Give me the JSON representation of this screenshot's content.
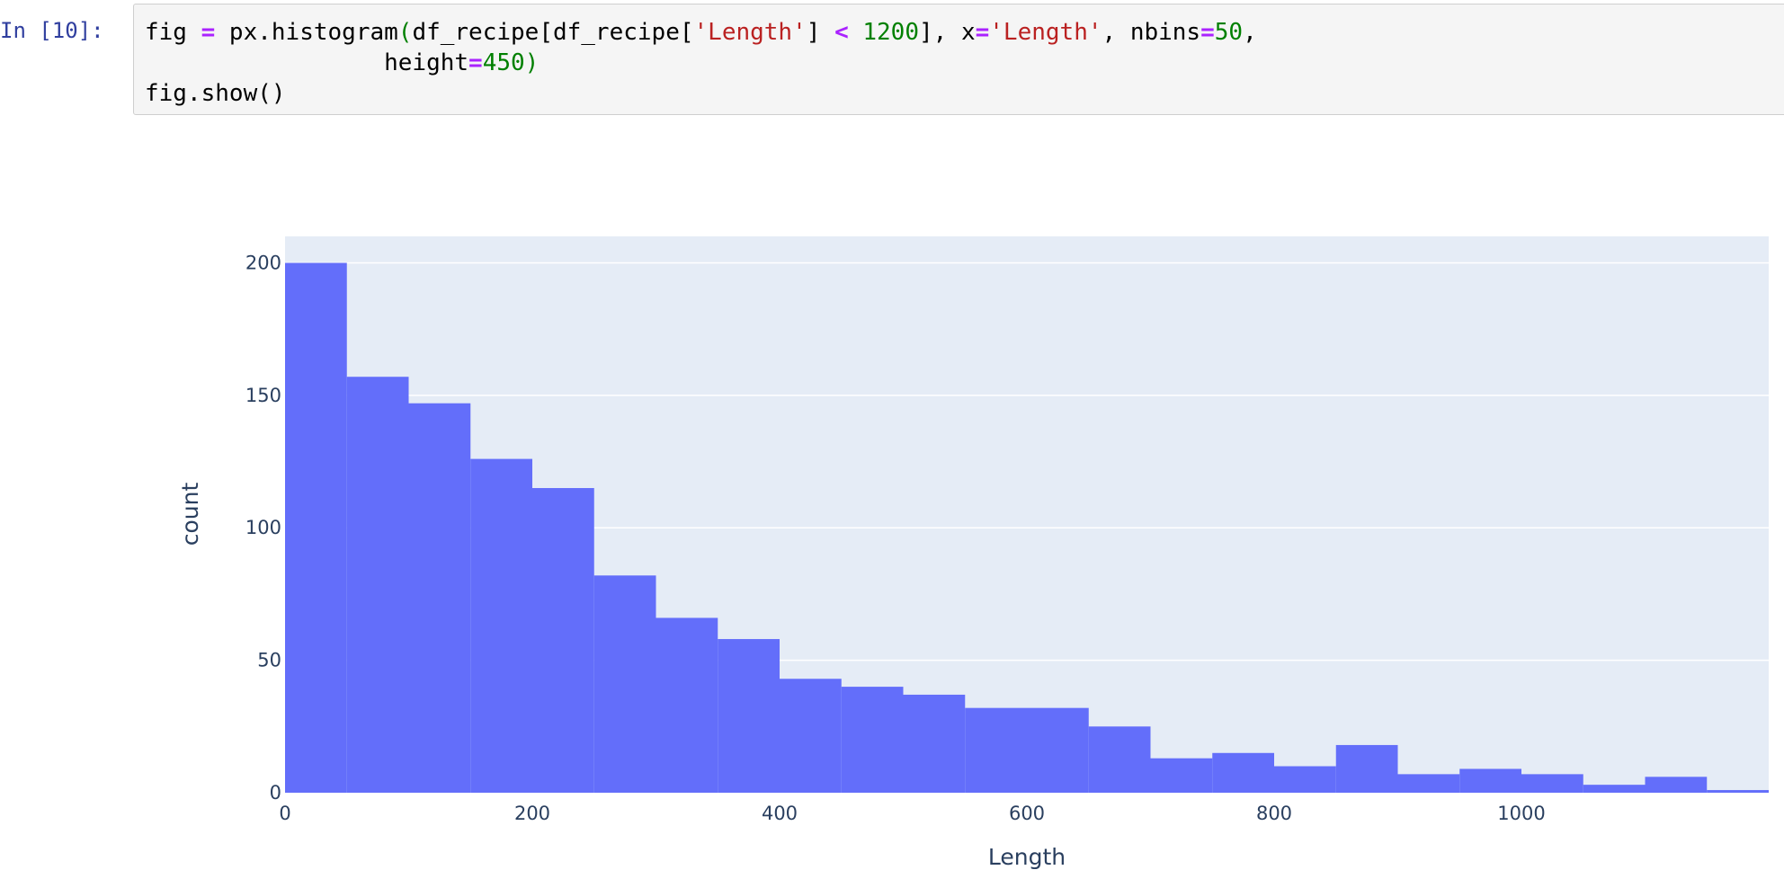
{
  "cell": {
    "prompt": "In [10]:",
    "code_lines": [
      [
        {
          "t": "fig ",
          "c": ""
        },
        {
          "t": "=",
          "c": "op"
        },
        {
          "t": " px.histogram",
          "c": ""
        },
        {
          "t": "(",
          "c": "num"
        },
        {
          "t": "df_recipe[df_recipe[",
          "c": ""
        },
        {
          "t": "'Length'",
          "c": "str"
        },
        {
          "t": "] ",
          "c": ""
        },
        {
          "t": "<",
          "c": "op"
        },
        {
          "t": " ",
          "c": ""
        },
        {
          "t": "1200",
          "c": "num"
        },
        {
          "t": "], x",
          "c": ""
        },
        {
          "t": "=",
          "c": "op"
        },
        {
          "t": "'Length'",
          "c": "str"
        },
        {
          "t": ", nbins",
          "c": ""
        },
        {
          "t": "=",
          "c": "op"
        },
        {
          "t": "50",
          "c": "num"
        },
        {
          "t": ",",
          "c": ""
        }
      ],
      [
        {
          "t": "                 height",
          "c": ""
        },
        {
          "t": "=",
          "c": "op"
        },
        {
          "t": "450",
          "c": "num"
        },
        {
          "t": ")",
          "c": "num"
        }
      ],
      [
        {
          "t": "fig.show()",
          "c": ""
        }
      ]
    ]
  },
  "chart_data": {
    "type": "bar",
    "subtype": "histogram",
    "xlabel": "Length",
    "ylabel": "count",
    "bin_width": 50,
    "bin_starts": [
      0,
      50,
      100,
      150,
      200,
      250,
      300,
      350,
      400,
      450,
      500,
      550,
      600,
      650,
      700,
      750,
      800,
      850,
      900,
      950,
      1000,
      1050,
      1100,
      1150
    ],
    "values": [
      200,
      157,
      147,
      126,
      115,
      82,
      66,
      58,
      43,
      40,
      37,
      32,
      32,
      25,
      13,
      15,
      10,
      18,
      7,
      9,
      7,
      3,
      6,
      1
    ],
    "xlim": [
      0,
      1200
    ],
    "ylim": [
      0,
      210
    ],
    "xticks": [
      "0",
      "200",
      "400",
      "600",
      "800",
      "1000"
    ],
    "xtick_values": [
      0,
      200,
      400,
      600,
      800,
      1000
    ],
    "yticks": [
      "0",
      "50",
      "100",
      "150",
      "200"
    ],
    "ytick_values": [
      0,
      50,
      100,
      150,
      200
    ],
    "grid": true,
    "colors": {
      "bar": "#636efa",
      "plot_bg": "#e5ecf6",
      "grid": "#ffffff",
      "text": "#2a3f5f"
    }
  }
}
